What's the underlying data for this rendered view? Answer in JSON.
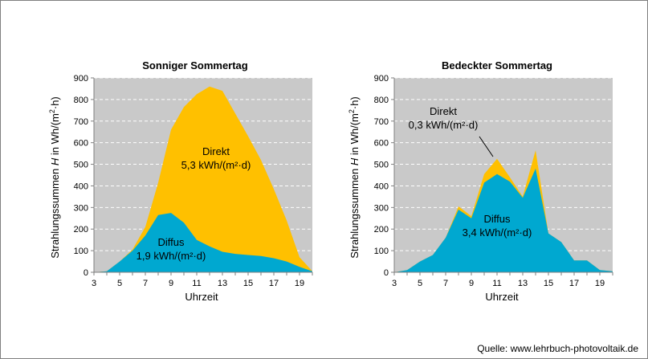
{
  "source": "Quelle: www.lehrbuch-photovoltaik.de",
  "colors": {
    "direct": "#ffc000",
    "diffuse": "#00a8d0",
    "plot_bg": "#c9c9c9",
    "grid": "#ffffff"
  },
  "chart_data": [
    {
      "type": "area",
      "title": "Sonniger Sommertag",
      "xlabel": "Uhrzeit",
      "ylabel_parts": [
        "Strahlungssummen ",
        "H",
        " in Wh/(m",
        "2",
        "·h)"
      ],
      "xlim": [
        3,
        20
      ],
      "ylim": [
        0,
        900
      ],
      "xticks": [
        3,
        5,
        7,
        9,
        11,
        13,
        15,
        17,
        19
      ],
      "yticks": [
        0,
        100,
        200,
        300,
        400,
        500,
        600,
        700,
        800,
        900
      ],
      "grid": true,
      "stacked": true,
      "x": [
        3,
        4,
        5,
        6,
        7,
        8,
        9,
        10,
        11,
        12,
        13,
        14,
        15,
        16,
        17,
        18,
        19,
        20
      ],
      "series": [
        {
          "name": "Diffus",
          "values": [
            0,
            5,
            50,
            100,
            170,
            265,
            275,
            230,
            150,
            120,
            95,
            85,
            80,
            75,
            65,
            50,
            25,
            5
          ]
        },
        {
          "name": "Direkt",
          "values": [
            0,
            0,
            0,
            5,
            40,
            150,
            385,
            535,
            675,
            740,
            745,
            650,
            550,
            445,
            320,
            190,
            45,
            0
          ]
        }
      ],
      "annotations": [
        {
          "series": "Direkt",
          "label": "Direkt",
          "value": "5,3 kWh/(m²·d)"
        },
        {
          "series": "Diffus",
          "label": "Diffus",
          "value": "1,9 kWh/(m²·d)"
        }
      ]
    },
    {
      "type": "area",
      "title": "Bedeckter Sommertag",
      "xlabel": "Uhrzeit",
      "ylabel_parts": [
        "Strahlungssummen ",
        "H",
        " in Wh/(m",
        "2",
        "·h)"
      ],
      "xlim": [
        3,
        20
      ],
      "ylim": [
        0,
        900
      ],
      "xticks": [
        3,
        5,
        7,
        9,
        11,
        13,
        15,
        17,
        19
      ],
      "yticks": [
        0,
        100,
        200,
        300,
        400,
        500,
        600,
        700,
        800,
        900
      ],
      "grid": true,
      "stacked": true,
      "x": [
        3,
        4,
        5,
        6,
        7,
        8,
        9,
        10,
        11,
        12,
        13,
        14,
        15,
        16,
        17,
        18,
        19,
        20
      ],
      "series": [
        {
          "name": "Diffus",
          "values": [
            0,
            10,
            50,
            80,
            160,
            290,
            250,
            415,
            455,
            420,
            345,
            480,
            180,
            140,
            55,
            55,
            10,
            5
          ]
        },
        {
          "name": "Direkt",
          "values": [
            0,
            0,
            0,
            0,
            0,
            15,
            10,
            40,
            70,
            20,
            5,
            85,
            0,
            0,
            0,
            0,
            0,
            0
          ]
        }
      ],
      "annotations": [
        {
          "series": "Direkt",
          "label": "Direkt",
          "value": "0,3 kWh/(m²·d)"
        },
        {
          "series": "Diffus",
          "label": "Diffus",
          "value": "3,4 kWh/(m²·d)"
        }
      ]
    }
  ]
}
